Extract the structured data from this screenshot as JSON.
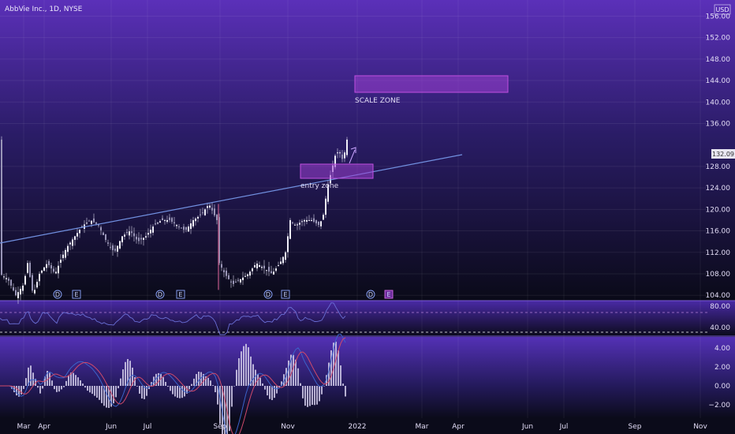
{
  "header": {
    "title": "AbbVie Inc., 1D, NYSE",
    "currency": "USD"
  },
  "colors": {
    "bg_top": "#5a2fb8",
    "bg_bottom": "#0b0b1a",
    "up": "#d9d6ea",
    "down": "#d9d6ea",
    "band": "#3b63c9",
    "band_fill": "#27235c",
    "trendline": "#6f8fe0",
    "zone": "#b23fd6",
    "macd": "#3b63c9",
    "signal": "#d04a6a",
    "hist": "#cfc9ea",
    "rsi": "#6a6fd6"
  },
  "chart_data": {
    "type": "candlestick",
    "title": "AbbVie Inc., 1D, NYSE",
    "price_axis": {
      "ticks": [
        "156.00",
        "152.00",
        "148.00",
        "144.00",
        "140.00",
        "136.00",
        "128.00",
        "124.00",
        "120.00",
        "116.00",
        "112.00",
        "108.00",
        "104.00"
      ],
      "range": [
        103,
        159
      ],
      "last_price": "132.09"
    },
    "time_axis": {
      "ticks": [
        "Mar",
        "Apr",
        "Jun",
        "Jul",
        "Sep",
        "Nov",
        "2022",
        "Mar",
        "Apr",
        "Jun",
        "Jul",
        "Sep",
        "Nov"
      ]
    },
    "price_path": [
      [
        0,
        108
      ],
      [
        10,
        107
      ],
      [
        20,
        104
      ],
      [
        30,
        106
      ],
      [
        35,
        110
      ],
      [
        42,
        104
      ],
      [
        50,
        108
      ],
      [
        60,
        110
      ],
      [
        70,
        108
      ],
      [
        78,
        111
      ],
      [
        85,
        113
      ],
      [
        95,
        115
      ],
      [
        105,
        117
      ],
      [
        115,
        118
      ],
      [
        125,
        117
      ],
      [
        135,
        114
      ],
      [
        145,
        112
      ],
      [
        155,
        115
      ],
      [
        165,
        116
      ],
      [
        175,
        114
      ],
      [
        185,
        115
      ],
      [
        195,
        117
      ],
      [
        205,
        118
      ],
      [
        215,
        118
      ],
      [
        225,
        117
      ],
      [
        235,
        116
      ],
      [
        245,
        118
      ],
      [
        255,
        119
      ],
      [
        265,
        121
      ],
      [
        275,
        118
      ],
      [
        278,
        110
      ],
      [
        285,
        108
      ],
      [
        295,
        106
      ],
      [
        305,
        107
      ],
      [
        315,
        108
      ],
      [
        325,
        110
      ],
      [
        335,
        109
      ],
      [
        345,
        108
      ],
      [
        355,
        110
      ],
      [
        362,
        112
      ],
      [
        368,
        118
      ],
      [
        375,
        117
      ],
      [
        385,
        118
      ],
      [
        395,
        118
      ],
      [
        405,
        117
      ],
      [
        410,
        119
      ],
      [
        415,
        124
      ],
      [
        420,
        127
      ],
      [
        425,
        130
      ],
      [
        430,
        131
      ],
      [
        435,
        129
      ],
      [
        440,
        133
      ]
    ],
    "annotations": [
      {
        "type": "trendline",
        "from": [
          "Mar",
          113
        ],
        "to": [
          "Apr 2022",
          131.9
        ]
      },
      {
        "type": "zone",
        "label": "SCALE ZONE",
        "range": [
          145,
          148
        ]
      },
      {
        "type": "zone",
        "label": "entry zone",
        "range": [
          127,
          128.5
        ]
      }
    ],
    "events": [
      "D",
      "E",
      "D",
      "E",
      "D",
      "E",
      "D",
      "E"
    ],
    "rsi": {
      "ticks": [
        "80.00",
        "40.00"
      ]
    },
    "macd": {
      "ticks": [
        "4.00",
        "2.00",
        "0.00",
        "−2.00"
      ]
    }
  }
}
